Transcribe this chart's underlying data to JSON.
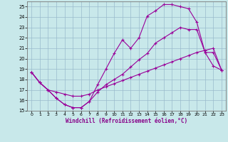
{
  "bg_color": "#c8e8ea",
  "line_color": "#990099",
  "grid_color": "#99bbcc",
  "xlabel": "Windchill (Refroidissement éolien,°C)",
  "xlim": [
    -0.5,
    23.5
  ],
  "ylim": [
    15,
    25.5
  ],
  "yticks": [
    15,
    16,
    17,
    18,
    19,
    20,
    21,
    22,
    23,
    24,
    25
  ],
  "xticks": [
    0,
    1,
    2,
    3,
    4,
    5,
    6,
    7,
    8,
    9,
    10,
    11,
    12,
    13,
    14,
    15,
    16,
    17,
    18,
    19,
    20,
    21,
    22,
    23
  ],
  "curve1_x": [
    0,
    1,
    2,
    3,
    4,
    5,
    6,
    7,
    8,
    9,
    10,
    11,
    12,
    13,
    14,
    15,
    16,
    17,
    18,
    19,
    20,
    21,
    22,
    23
  ],
  "curve1_y": [
    18.7,
    17.7,
    17.0,
    16.2,
    15.6,
    15.3,
    15.3,
    15.9,
    17.5,
    19.0,
    20.5,
    21.8,
    21.0,
    22.0,
    24.1,
    24.6,
    25.2,
    25.2,
    25.0,
    24.8,
    23.5,
    20.6,
    19.3,
    18.9
  ],
  "curve2_x": [
    0,
    1,
    2,
    3,
    4,
    5,
    6,
    7,
    8,
    9,
    10,
    11,
    12,
    13,
    14,
    15,
    16,
    17,
    18,
    19,
    20,
    21,
    22,
    23
  ],
  "curve2_y": [
    18.7,
    17.7,
    17.0,
    16.2,
    15.6,
    15.3,
    15.3,
    15.9,
    16.8,
    17.5,
    18.0,
    18.5,
    19.2,
    19.9,
    20.5,
    21.5,
    22.0,
    22.5,
    23.0,
    22.8,
    22.8,
    20.6,
    20.6,
    18.9
  ],
  "curve3_x": [
    0,
    1,
    2,
    3,
    4,
    5,
    6,
    7,
    8,
    9,
    10,
    11,
    12,
    13,
    14,
    15,
    16,
    17,
    18,
    19,
    20,
    21,
    22,
    23
  ],
  "curve3_y": [
    18.7,
    17.7,
    17.0,
    16.8,
    16.6,
    16.4,
    16.4,
    16.6,
    17.0,
    17.3,
    17.6,
    17.9,
    18.2,
    18.5,
    18.8,
    19.1,
    19.4,
    19.7,
    20.0,
    20.3,
    20.6,
    20.8,
    21.0,
    18.9
  ]
}
